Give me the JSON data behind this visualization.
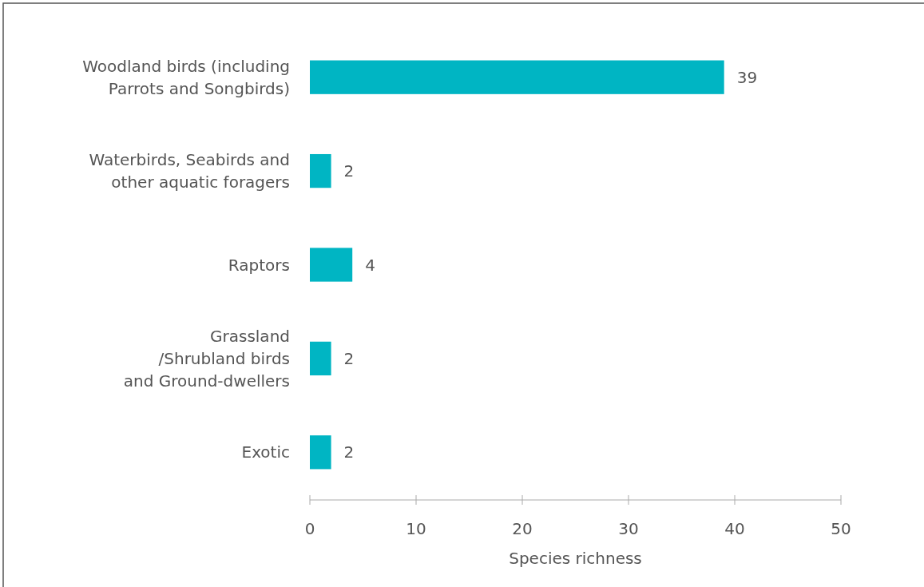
{
  "chart_data": {
    "type": "bar",
    "orientation": "horizontal",
    "xlabel": "Species richness",
    "categories": [
      "Woodland birds (including\nParrots and Songbirds)",
      "Waterbirds, Seabirds and\nother aquatic foragers",
      "Raptors",
      "Grassland\n/Shrubland birds\nand Ground-dwellers",
      "Exotic"
    ],
    "values": [
      39,
      2,
      4,
      2,
      2
    ],
    "color": "#00b5c3",
    "data_labels": true,
    "xlim": [
      0,
      50
    ],
    "xticks": [
      0,
      10,
      20,
      30,
      40,
      50
    ],
    "grid": false
  }
}
